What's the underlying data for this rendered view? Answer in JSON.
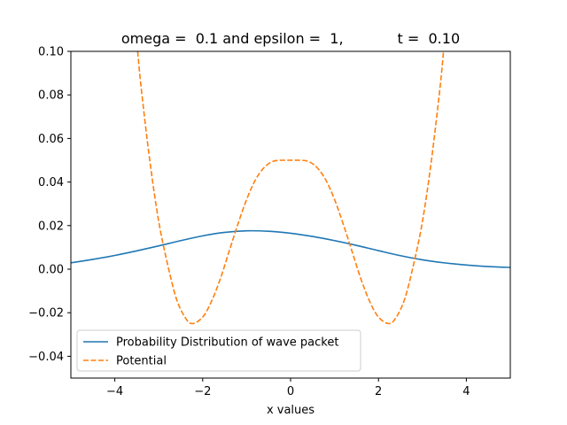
{
  "chart_data": {
    "type": "line",
    "title": "omega =  0.1 and epsilon =  1,            t =  0.10",
    "xlabel": "x values",
    "ylabel": "",
    "xlim": [
      -5,
      5
    ],
    "ylim": [
      -0.05,
      0.1
    ],
    "x_ticks": [
      -4,
      -2,
      0,
      2,
      4
    ],
    "x_tick_labels": [
      "−4",
      "−2",
      "0",
      "2",
      "4"
    ],
    "y_ticks": [
      -0.04,
      -0.02,
      0.0,
      0.02,
      0.04,
      0.06,
      0.08,
      0.1
    ],
    "y_tick_labels": [
      "−0.04",
      "−0.02",
      "0.00",
      "0.02",
      "0.04",
      "0.06",
      "0.08",
      "0.10"
    ],
    "grid": false,
    "legend_position": "lower-left",
    "series": [
      {
        "name": "Probability Distribution of wave packet",
        "color": "#1f77b4",
        "style": "solid",
        "x": [
          -5,
          -4.5,
          -4,
          -3.5,
          -3,
          -2.5,
          -2,
          -1.5,
          -1,
          -0.5,
          0,
          0.5,
          1,
          1.5,
          2,
          2.5,
          3,
          3.5,
          4,
          4.5,
          5
        ],
        "y": [
          0.0029,
          0.0045,
          0.0063,
          0.0084,
          0.0107,
          0.0131,
          0.0153,
          0.0169,
          0.0176,
          0.0174,
          0.0165,
          0.015,
          0.0131,
          0.0109,
          0.0085,
          0.0062,
          0.0043,
          0.0029,
          0.0019,
          0.0012,
          0.0008
        ]
      },
      {
        "name": "Potential",
        "color": "#ff7f0e",
        "style": "dashed",
        "x": [
          -3.48,
          -3.4,
          -3.2,
          -3.0,
          -2.8,
          -2.6,
          -2.4,
          -2.236,
          -2.0,
          -1.8,
          -1.6,
          -1.4,
          -1.2,
          -1.0,
          -0.8,
          -0.6,
          -0.4,
          -0.2,
          0,
          0.2,
          0.4,
          0.6,
          0.8,
          1.0,
          1.2,
          1.4,
          1.6,
          1.8,
          2.0,
          2.236,
          2.4,
          2.6,
          2.8,
          3.0,
          3.2,
          3.4,
          3.48
        ],
        "y": [
          0.1,
          0.0832,
          0.0492,
          0.0218,
          0.0023,
          -0.0135,
          -0.0222,
          -0.025,
          -0.022,
          -0.0148,
          -0.0045,
          0.0081,
          0.0206,
          0.032,
          0.041,
          0.0467,
          0.0495,
          0.05,
          0.05,
          0.05,
          0.0495,
          0.0467,
          0.041,
          0.032,
          0.0206,
          0.0081,
          -0.0045,
          -0.0148,
          -0.022,
          -0.025,
          -0.0222,
          -0.0135,
          0.0023,
          0.0218,
          0.0492,
          0.0832,
          0.1
        ]
      }
    ]
  }
}
